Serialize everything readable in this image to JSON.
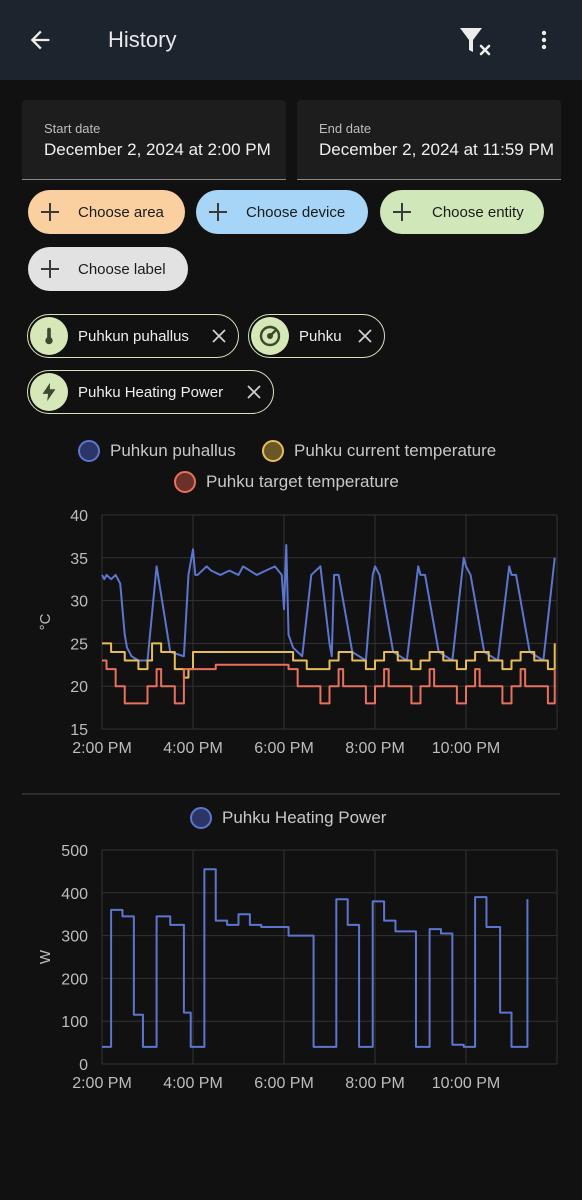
{
  "header": {
    "title": "History"
  },
  "dates": {
    "start_label": "Start date",
    "start_value": "December 2, 2024 at 2:00 PM",
    "end_label": "End date",
    "end_value": "December 2, 2024 at 11:59 PM"
  },
  "pickers": {
    "area": "Choose area",
    "device": "Choose device",
    "entity": "Choose entity",
    "label": "Choose label"
  },
  "entities": [
    {
      "name": "Puhkun puhallus",
      "icon": "thermometer-icon"
    },
    {
      "name": "Puhku",
      "icon": "thermostat-icon"
    },
    {
      "name": "Puhku Heating Power",
      "icon": "flash-icon"
    }
  ],
  "colors": {
    "blue": "#5c75cf",
    "yellow": "#e6bd58",
    "red": "#e8705e",
    "chip_area": "#fbd0a0",
    "chip_device": "#a6d5f7",
    "chip_entity": "#cfe7b9",
    "chip_label": "#e2e2e2"
  },
  "chart_data": [
    {
      "type": "line",
      "ylabel": "°C",
      "ylim": [
        15,
        40
      ],
      "yticks": [
        "15",
        "20",
        "25",
        "30",
        "35",
        "40"
      ],
      "xticks": [
        "2:00 PM",
        "4:00 PM",
        "6:00 PM",
        "8:00 PM",
        "10:00 PM"
      ],
      "legend": [
        "Puhkun puhallus",
        "Puhku current temperature",
        "Puhku target temperature"
      ],
      "series": [
        {
          "name": "Puhkun puhallus",
          "x": [
            14.0,
            14.05,
            14.1,
            14.2,
            14.3,
            14.4,
            14.5,
            14.55,
            14.65,
            14.8,
            15.0,
            15.2,
            15.5,
            15.8,
            15.9,
            16.0,
            16.05,
            16.1,
            16.3,
            16.4,
            16.6,
            16.8,
            17.0,
            17.1,
            17.4,
            17.6,
            17.8,
            17.95,
            18.0,
            18.05,
            18.1,
            18.2,
            18.4,
            18.6,
            18.8,
            19.0,
            19.05,
            19.1,
            19.2,
            19.5,
            19.8,
            19.95,
            20.0,
            20.1,
            20.4,
            20.7,
            20.95,
            21.0,
            21.1,
            21.4,
            21.7,
            21.95,
            22.0,
            22.1,
            22.4,
            22.7,
            22.95,
            23.0,
            23.1,
            23.4,
            23.7,
            23.95
          ],
          "y": [
            33,
            32.5,
            33,
            32.5,
            33,
            32,
            26,
            24.5,
            23.5,
            23,
            23,
            34,
            24,
            23.5,
            33,
            36,
            33,
            33,
            34,
            33.5,
            33,
            33.5,
            33,
            34,
            33,
            33.5,
            34,
            33,
            29,
            36.5,
            26,
            24.5,
            23.5,
            33,
            34,
            25,
            23.5,
            33,
            33,
            24,
            23,
            33,
            34,
            33,
            24,
            23,
            34,
            33,
            33,
            24,
            23,
            35,
            34,
            33,
            24,
            23,
            34,
            33,
            33,
            24,
            23,
            35
          ]
        },
        {
          "name": "Puhku current temperature",
          "x": [
            14.0,
            14.2,
            14.5,
            14.8,
            15.0,
            15.1,
            15.3,
            15.6,
            15.8,
            15.9,
            16.0,
            16.5,
            17.0,
            17.5,
            18.0,
            18.2,
            18.5,
            18.8,
            19.0,
            19.2,
            19.5,
            19.8,
            20.0,
            20.2,
            20.5,
            20.8,
            21.0,
            21.2,
            21.5,
            21.8,
            22.0,
            22.2,
            22.5,
            22.8,
            23.0,
            23.2,
            23.5,
            23.8,
            23.95
          ],
          "y": [
            25,
            24,
            23,
            22,
            23,
            25,
            24,
            22,
            21,
            22,
            24,
            24,
            24,
            24,
            24,
            23,
            22,
            22,
            23,
            24,
            23,
            22,
            23,
            24,
            23,
            22,
            23,
            24,
            23,
            22,
            23,
            24,
            23,
            22,
            23,
            24,
            23,
            22,
            25
          ]
        },
        {
          "name": "Puhku target temperature",
          "x": [
            14.0,
            14.1,
            14.3,
            14.5,
            15.0,
            15.2,
            15.3,
            15.6,
            15.8,
            16.0,
            16.5,
            17.0,
            17.5,
            18.0,
            18.1,
            18.3,
            18.8,
            19.0,
            19.2,
            19.3,
            19.8,
            20.0,
            20.2,
            20.3,
            20.8,
            21.0,
            21.2,
            21.3,
            21.8,
            22.0,
            22.2,
            22.3,
            22.8,
            23.0,
            23.2,
            23.3,
            23.8,
            23.95
          ],
          "y": [
            23,
            22,
            20,
            18,
            20,
            22,
            20,
            18,
            22,
            22,
            22.5,
            22.5,
            22.5,
            22.5,
            22,
            20,
            18,
            20,
            22,
            20,
            18,
            20,
            22,
            20,
            18,
            20,
            22,
            20,
            18,
            20,
            22,
            20,
            18,
            20,
            22,
            20,
            18,
            22
          ]
        }
      ]
    },
    {
      "type": "line",
      "ylabel": "W",
      "ylim": [
        0,
        500
      ],
      "yticks": [
        "0",
        "100",
        "200",
        "300",
        "400",
        "500"
      ],
      "xticks": [
        "2:00 PM",
        "4:00 PM",
        "6:00 PM",
        "8:00 PM",
        "10:00 PM"
      ],
      "legend": [
        "Puhku Heating Power"
      ],
      "series": [
        {
          "name": "Puhku Heating Power",
          "x": [
            14.0,
            14.2,
            14.45,
            14.7,
            14.9,
            15.2,
            15.5,
            15.8,
            15.95,
            16.0,
            16.25,
            16.5,
            16.75,
            17.0,
            17.25,
            17.5,
            18.0,
            18.1,
            18.65,
            19.15,
            19.4,
            19.65,
            19.95,
            20.2,
            20.45,
            20.9,
            21.2,
            21.45,
            21.7,
            21.95,
            22.2,
            22.45,
            22.75,
            23.0,
            23.35
          ],
          "y": [
            40,
            360,
            345,
            115,
            40,
            345,
            325,
            120,
            40,
            40,
            455,
            335,
            325,
            350,
            325,
            320,
            320,
            300,
            40,
            385,
            325,
            40,
            380,
            335,
            310,
            40,
            315,
            305,
            45,
            40,
            390,
            320,
            120,
            40,
            385
          ]
        }
      ]
    }
  ]
}
